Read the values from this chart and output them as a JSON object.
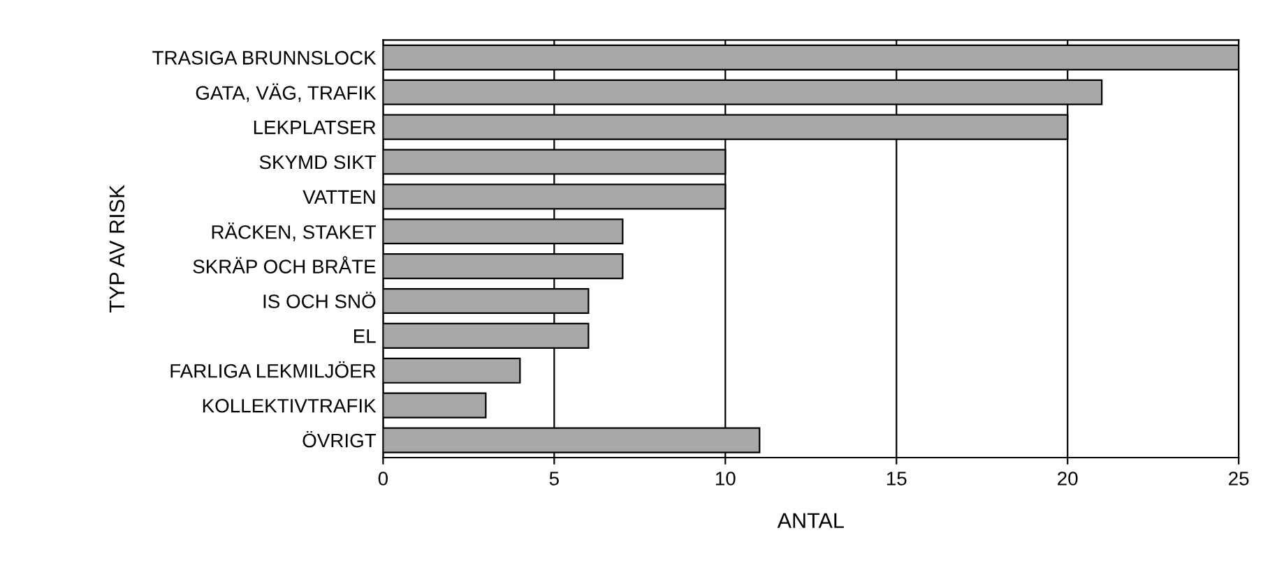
{
  "chart_data": {
    "type": "bar",
    "orientation": "horizontal",
    "xlabel": "ANTAL",
    "ylabel": "TYP AV RISK",
    "categories": [
      "TRASIGA BRUNNSLOCK",
      "GATA, VÄG, TRAFIK",
      "LEKPLATSER",
      "SKYMD SIKT",
      "VATTEN",
      "RÄCKEN, STAKET",
      "SKRÄP OCH BRÅTE",
      "IS OCH SNÖ",
      "EL",
      "FARLIGA LEKMILJÖER",
      "KOLLEKTIVTRAFIK",
      "ÖVRIGT"
    ],
    "values": [
      25,
      21,
      20,
      10,
      10,
      7,
      7,
      6,
      6,
      4,
      3,
      11
    ],
    "color": "#a8a8a8",
    "xlim": [
      0,
      25
    ],
    "xticks": [
      0,
      5,
      10,
      15,
      20,
      25
    ],
    "grid": "x"
  }
}
